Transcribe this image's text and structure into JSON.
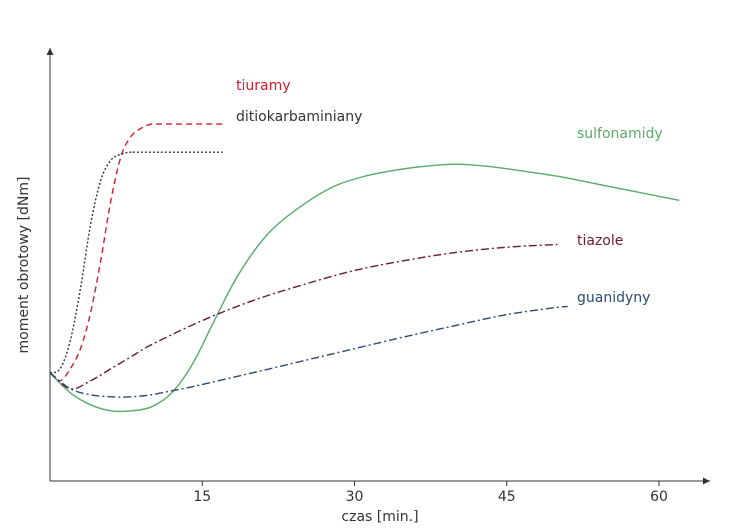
{
  "chart_data": {
    "type": "line",
    "title": "",
    "xlabel": "czas [min.]",
    "ylabel": "moment obrotowy [dNm]",
    "xlim": [
      0,
      65
    ],
    "ylim": [
      0,
      100
    ],
    "x_ticks": [
      15,
      30,
      45,
      60
    ],
    "grid": false,
    "legend": "inline labels at line ends",
    "series": [
      {
        "name": "tiuramy",
        "color": "#d0202c",
        "dash": "dashed",
        "points": [
          [
            0,
            27
          ],
          [
            1,
            25
          ],
          [
            2,
            28
          ],
          [
            3,
            33
          ],
          [
            4,
            42
          ],
          [
            5,
            55
          ],
          [
            6,
            70
          ],
          [
            7,
            81
          ],
          [
            8,
            86
          ],
          [
            9,
            88
          ],
          [
            10,
            89
          ],
          [
            11,
            89
          ],
          [
            17,
            89
          ]
        ]
      },
      {
        "name": "ditiokarbaminiany",
        "color": "#333333",
        "dash": "dotted",
        "points": [
          [
            0,
            27
          ],
          [
            1,
            28
          ],
          [
            2,
            35
          ],
          [
            3,
            48
          ],
          [
            4,
            64
          ],
          [
            5,
            75
          ],
          [
            6,
            80
          ],
          [
            7,
            81.5
          ],
          [
            8,
            82
          ],
          [
            9,
            82
          ],
          [
            17,
            82
          ]
        ]
      },
      {
        "name": "sulfonamidy",
        "color": "#5aaa6a",
        "dash": "solid",
        "points": [
          [
            0,
            27
          ],
          [
            2,
            22
          ],
          [
            4,
            19
          ],
          [
            6,
            17.5
          ],
          [
            8,
            17.5
          ],
          [
            10,
            18.5
          ],
          [
            12,
            22
          ],
          [
            14,
            29
          ],
          [
            16,
            39
          ],
          [
            18,
            49
          ],
          [
            20,
            57
          ],
          [
            22,
            63
          ],
          [
            25,
            69
          ],
          [
            28,
            73.5
          ],
          [
            31,
            76
          ],
          [
            34,
            77.5
          ],
          [
            37,
            78.5
          ],
          [
            40,
            79
          ],
          [
            43,
            78.5
          ],
          [
            46,
            77.5
          ],
          [
            50,
            76
          ],
          [
            55,
            73.5
          ],
          [
            60,
            71
          ],
          [
            62,
            70
          ]
        ]
      },
      {
        "name": "tiazole",
        "color": "#6b1c2e",
        "dash": "dashdot",
        "points": [
          [
            0,
            27
          ],
          [
            2,
            23
          ],
          [
            4,
            25
          ],
          [
            6,
            28
          ],
          [
            8,
            31
          ],
          [
            10,
            34
          ],
          [
            15,
            40
          ],
          [
            20,
            45
          ],
          [
            25,
            49
          ],
          [
            30,
            52.5
          ],
          [
            35,
            55
          ],
          [
            40,
            57
          ],
          [
            45,
            58.3
          ],
          [
            50,
            59
          ]
        ]
      },
      {
        "name": "guanidyny",
        "color": "#2c4a72",
        "dash": "dashdot",
        "points": [
          [
            0,
            27
          ],
          [
            2,
            23
          ],
          [
            4,
            21.5
          ],
          [
            6,
            21
          ],
          [
            8,
            21
          ],
          [
            10,
            21.5
          ],
          [
            12,
            22.5
          ],
          [
            14,
            23.5
          ],
          [
            20,
            27
          ],
          [
            25,
            30
          ],
          [
            30,
            33
          ],
          [
            35,
            36
          ],
          [
            40,
            38.8
          ],
          [
            45,
            41.5
          ],
          [
            50,
            43.3
          ],
          [
            51,
            43.5
          ]
        ]
      }
    ]
  }
}
